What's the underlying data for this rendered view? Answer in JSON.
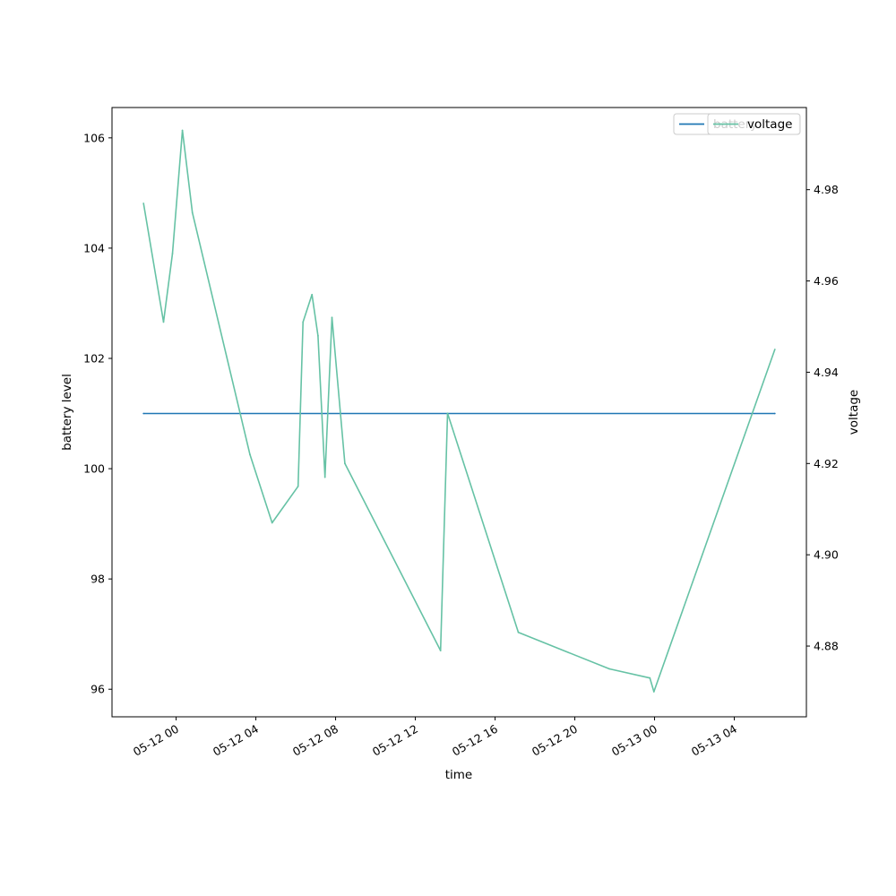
{
  "chart_data": {
    "type": "line",
    "title": "",
    "xlabel": "time",
    "ylabel": "battery level",
    "y2label": "voltage",
    "x_ticks": [
      "05-12 00",
      "05-12 04",
      "05-12 08",
      "05-12 12",
      "05-12 16",
      "05-12 20",
      "05-13 00",
      "05-13 04"
    ],
    "y_ticks": [
      "96",
      "98",
      "100",
      "102",
      "104",
      "106"
    ],
    "y2_ticks": [
      "4.88",
      "4.90",
      "4.92",
      "4.94",
      "4.96",
      "4.98"
    ],
    "xlim": [
      "2024-05-11 20:47",
      "2024-05-13 07:37"
    ],
    "ylim": [
      95.5,
      106.55
    ],
    "y2lim": [
      4.8645,
      4.998
    ],
    "grid": false,
    "legend": {
      "placement": "top-right",
      "overlapping": true
    },
    "series": [
      {
        "name": "battery",
        "axis": "left",
        "color": "#1f77b4",
        "x": [
          "2024-05-11 22:22",
          "2024-05-13 06:02"
        ],
        "y": [
          101,
          101
        ]
      },
      {
        "name": "voltage",
        "axis": "right",
        "color": "#66c2a5",
        "x": [
          "2024-05-11 22:22",
          "2024-05-11 23:22",
          "2024-05-11 23:49",
          "2024-05-12 00:19",
          "2024-05-12 00:49",
          "2024-05-12 03:42",
          "2024-05-12 04:49",
          "2024-05-12 06:07",
          "2024-05-12 06:22",
          "2024-05-12 06:49",
          "2024-05-12 07:07",
          "2024-05-12 07:28",
          "2024-05-12 07:49",
          "2024-05-12 08:28",
          "2024-05-12 13:16",
          "2024-05-12 13:37",
          "2024-05-12 17:10",
          "2024-05-12 21:44",
          "2024-05-12 23:46",
          "2024-05-12 23:58",
          "2024-05-13 06:02"
        ],
        "y": [
          4.977,
          4.951,
          4.966,
          4.993,
          4.975,
          4.922,
          4.907,
          4.915,
          4.951,
          4.957,
          4.948,
          4.917,
          4.952,
          4.92,
          4.879,
          4.931,
          4.883,
          4.875,
          4.873,
          4.87,
          4.945
        ]
      }
    ]
  }
}
